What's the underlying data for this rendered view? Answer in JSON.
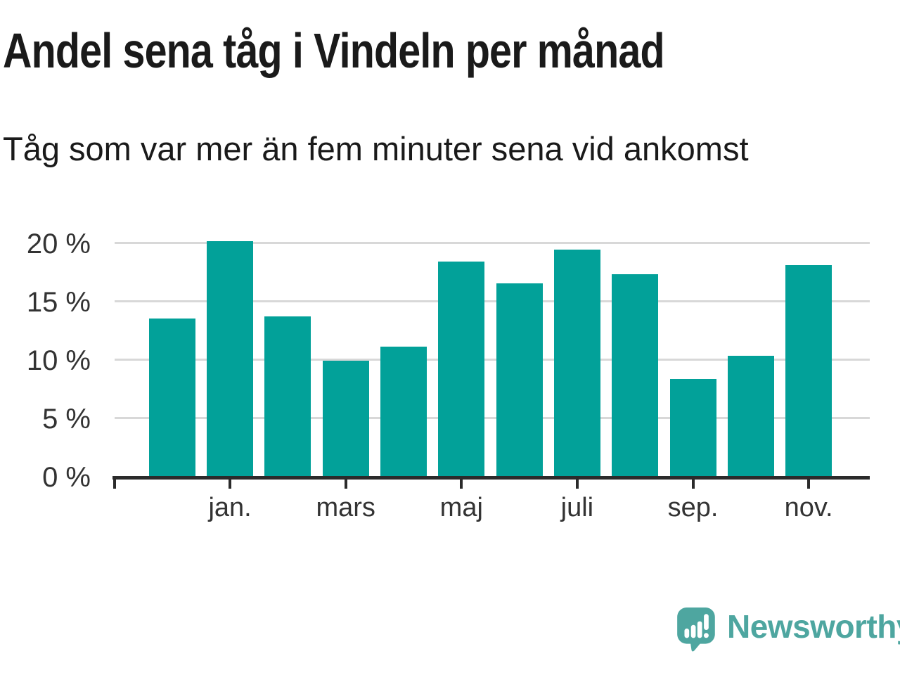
{
  "header": {
    "title": "Andel sena tåg i Vindeln per månad",
    "subtitle": "Tåg som var mer än fem minuter sena vid ankomst"
  },
  "chart_data": {
    "type": "bar",
    "title": "Andel sena tåg i Vindeln per månad",
    "subtitle": "Tåg som var mer än fem minuter sena vid ankomst",
    "unit": "%",
    "categories": [
      "",
      "jan.",
      "",
      "mars",
      "",
      "maj",
      "",
      "juli",
      "",
      "sep.",
      "",
      "nov."
    ],
    "values": [
      13.5,
      20.1,
      13.7,
      9.9,
      11.1,
      18.4,
      16.5,
      19.4,
      17.3,
      8.3,
      10.3,
      18.1
    ],
    "x_tick_labels": [
      "jan.",
      "mars",
      "maj",
      "juli",
      "sep.",
      "nov."
    ],
    "y_tick_labels": [
      "20 %",
      "15 %",
      "10 %",
      "5 %",
      "0 %"
    ],
    "y_tick_values": [
      20,
      15,
      10,
      5,
      0
    ],
    "ylim": [
      0,
      21
    ],
    "grid": true,
    "legend": false,
    "bar_color": "#02a199"
  },
  "footer": {
    "brand": "Newsworthy"
  },
  "colors": {
    "bar": "#02a199",
    "grid": "#d8d8d8",
    "axis": "#2b2b2b",
    "title_text": "#1a1a1a",
    "tick_text": "#333333",
    "brand": "#4ea6a0"
  }
}
